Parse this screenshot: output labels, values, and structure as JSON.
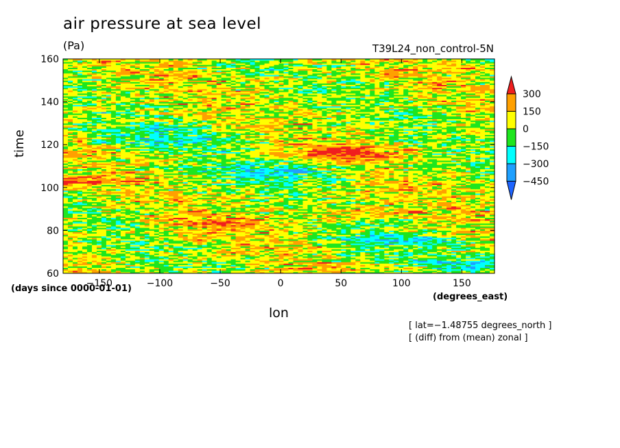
{
  "chart_data": {
    "type": "heatmap",
    "title": "air pressure at sea level",
    "units": "(Pa)",
    "run_name": "T39L24_non_control-5N",
    "xlabel": "lon",
    "ylabel": "time",
    "x_units": "(degrees_east)",
    "y_units": "(days since 0000-01-01)",
    "xlim": [
      -180,
      177
    ],
    "ylim": [
      60,
      160
    ],
    "x_ticks": [
      -150,
      -100,
      -50,
      0,
      50,
      100,
      150
    ],
    "y_ticks": [
      60,
      80,
      100,
      120,
      140,
      160
    ],
    "x_tick_labels": [
      "−150",
      "−100",
      "−50",
      "0",
      "50",
      "100",
      "150"
    ],
    "y_tick_labels": [
      "60",
      "80",
      "100",
      "120",
      "140",
      "160"
    ],
    "colorbar": {
      "levels": [
        -450,
        -300,
        -150,
        0,
        150,
        300
      ],
      "level_labels": [
        "−450",
        "−300",
        "−150",
        "0",
        "150",
        "300"
      ],
      "colors": [
        "#1e64ff",
        "#1ea0ff",
        "#00ffff",
        "#1ee61e",
        "#ffff00",
        "#ffa000",
        "#f01e1e"
      ]
    },
    "annotations": [
      "[ lat=−1.48755 degrees_north ]",
      "[ (diff) from (mean) zonal ]"
    ],
    "field_description": "noisy anomaly field with streaky horizontal structure; red/orange bands near lon -180..-160 around day 103-104, near lon 20..80 around day 115-118, and near lon 40..80 around day 88"
  }
}
